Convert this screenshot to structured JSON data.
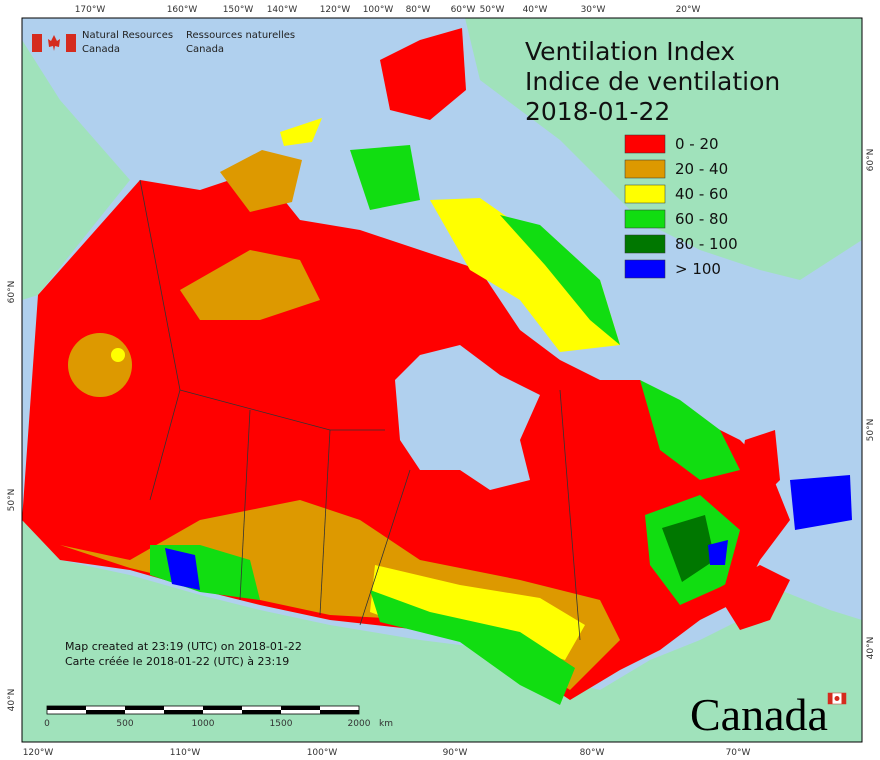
{
  "agency_en": [
    "Natural Resources",
    "Canada"
  ],
  "agency_fr": [
    "Ressources naturelles",
    "Canada"
  ],
  "title": [
    "Ventilation Index",
    "Indice de ventilation",
    "2018-01-22"
  ],
  "legend": [
    {
      "label": "0 - 20",
      "color": "#ff0000"
    },
    {
      "label": "20 - 40",
      "color": "#dd9900"
    },
    {
      "label": "40 - 60",
      "color": "#ffff00"
    },
    {
      "label": "60 - 80",
      "color": "#11dd11"
    },
    {
      "label": "80 - 100",
      "color": "#007700"
    },
    {
      "label": "> 100",
      "color": "#0000ff"
    }
  ],
  "top_axis_labels": [
    "170°W",
    "160°W",
    "150°W",
    "140°W",
    "120°W",
    "100°W",
    "80°W",
    "60°W",
    "50°W",
    "40°W",
    "30°W",
    "20°W"
  ],
  "bottom_axis_labels": [
    "120°W",
    "110°W",
    "100°W",
    "90°W",
    "80°W",
    "70°W"
  ],
  "left_axis_labels": [
    "60°N",
    "50°N",
    "40°N"
  ],
  "right_axis_labels": [
    "60°N",
    "50°N",
    "40°N"
  ],
  "credits": [
    "Map created at 23:19 (UTC) on 2018-01-22",
    "Carte créée le 2018-01-22 (UTC) à 23:19"
  ],
  "scale_bar": {
    "labels": [
      0,
      500,
      1000,
      1500,
      2000
    ],
    "unit": "km"
  },
  "wordmark": "Canada"
}
